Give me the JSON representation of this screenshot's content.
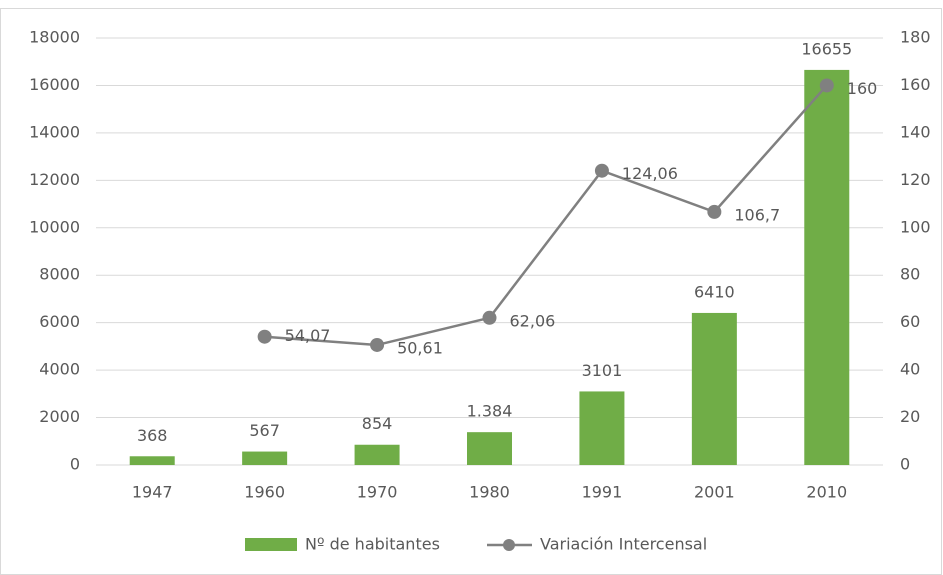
{
  "chart_data": {
    "type": "combo",
    "categories": [
      "1947",
      "1960",
      "1970",
      "1980",
      "1991",
      "2001",
      "2010"
    ],
    "series": [
      {
        "name": "Nº de habitantes",
        "type": "bar",
        "color": "#70ad47",
        "values": [
          368,
          567,
          854,
          1384,
          3101,
          6410,
          16655
        ],
        "value_labels": [
          "368",
          "567",
          "854",
          "1.384",
          "3101",
          "6410",
          "16655"
        ]
      },
      {
        "name": "Variación Intercensal",
        "type": "line",
        "axis": "y2",
        "color": "#808080",
        "values": [
          null,
          54.07,
          50.61,
          62.06,
          124.06,
          106.7,
          160
        ],
        "value_labels": [
          null,
          "54,07",
          "50,61",
          "62,06",
          "124,06",
          "106,7",
          "160"
        ]
      }
    ],
    "ylim": [
      0,
      18000
    ],
    "yticks": [
      0,
      2000,
      4000,
      6000,
      8000,
      10000,
      12000,
      14000,
      16000,
      18000
    ],
    "y2lim": [
      0,
      180
    ],
    "y2ticks": [
      0,
      20,
      40,
      60,
      80,
      100,
      120,
      140,
      160,
      180
    ],
    "grid": true,
    "legend": "bottom"
  }
}
